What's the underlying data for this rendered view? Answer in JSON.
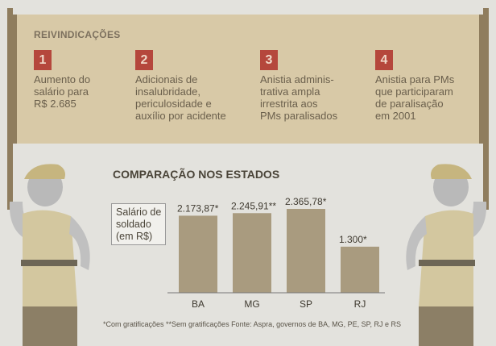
{
  "demands": {
    "title": "REIVINDICAÇÕES",
    "items": [
      {
        "num": "1",
        "lines": [
          "Aumento do",
          "salário para",
          "R$ 2.685"
        ]
      },
      {
        "num": "2",
        "lines": [
          "Adicionais de",
          "insalubridade,",
          "periculosidade e",
          "auxílio por acidente"
        ]
      },
      {
        "num": "3",
        "lines": [
          "Anistia adminis-",
          "trativa ampla",
          "irrestrita aos",
          "PMs paralisados"
        ]
      },
      {
        "num": "4",
        "lines": [
          "Anistia para PMs",
          "que participaram",
          "de paralisação",
          "em 2001"
        ]
      }
    ]
  },
  "chart_data": {
    "type": "bar",
    "title": "COMPARAÇÃO NOS ESTADOS",
    "ylabel_lines": [
      "Salário de",
      "soldado",
      "(em R$)"
    ],
    "categories": [
      "BA",
      "MG",
      "SP",
      "RJ"
    ],
    "values": [
      2173.87,
      2245.91,
      2365.78,
      1300
    ],
    "data_labels": [
      "2.173,87*",
      "2.245,91**",
      "2.365,78*",
      "1.300*"
    ],
    "ylim": [
      0,
      2365.78
    ],
    "grid": false,
    "bar_color": "#a99b7f"
  },
  "footnote": "*Com gratificações **Sem gratificações   Fonte: Aspra, governos de BA, MG, PE, SP, RJ e RS",
  "colors": {
    "banner": "#d8c9a7",
    "number_box": "#b5473c"
  }
}
